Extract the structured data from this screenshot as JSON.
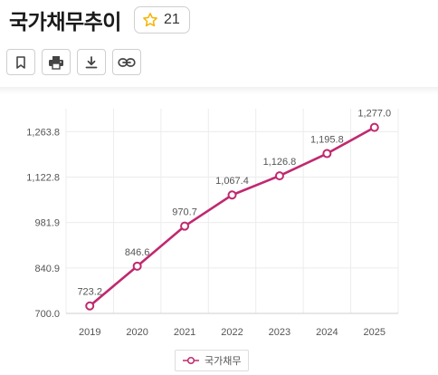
{
  "header": {
    "title": "국가채무추이",
    "star_count": "21"
  },
  "toolbar": {
    "items": [
      "bookmark-icon",
      "print-icon",
      "download-icon",
      "link-icon"
    ]
  },
  "colors": {
    "series": "#c0296f",
    "star": "#f5b400",
    "grid": "#ececec",
    "axis": "#555555"
  },
  "chart_data": {
    "type": "line",
    "title": "",
    "xlabel": "",
    "ylabel": "",
    "x": [
      "2019",
      "2020",
      "2021",
      "2022",
      "2023",
      "2024",
      "2025"
    ],
    "series": [
      {
        "name": "국가채무",
        "values": [
          723.2,
          846.6,
          970.7,
          1067.4,
          1126.8,
          1195.8,
          1277.0
        ]
      }
    ],
    "data_labels": [
      "723.2",
      "846.6",
      "970.7",
      "1,067.4",
      "1,126.8",
      "1,195.8",
      "1,277.0"
    ],
    "y_ticks": [
      "700.0",
      "840.9",
      "981.9",
      "1,122.8",
      "1,263.8"
    ],
    "ylim": [
      700.0,
      1335.0
    ],
    "grid": true,
    "legend_position": "bottom-center"
  }
}
